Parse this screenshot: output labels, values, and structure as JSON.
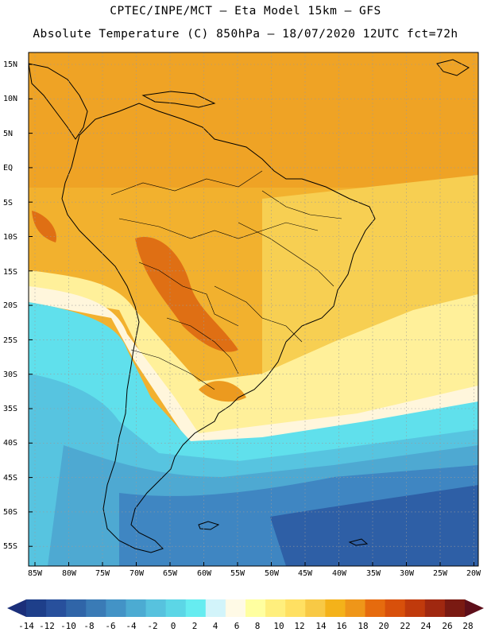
{
  "header": {
    "line1": "CPTEC/INPE/MCT –  Eta Model 15km – GFS",
    "line2": "Absolute Temperature (C) 850hPa – 18/07/2020 12UTC fct=72h"
  },
  "axes": {
    "lat_labels": [
      "15N",
      "10N",
      "5N",
      "EQ",
      "5S",
      "10S",
      "15S",
      "20S",
      "25S",
      "30S",
      "35S",
      "40S",
      "45S",
      "50S",
      "55S"
    ],
    "lon_labels": [
      "85W",
      "80W",
      "75W",
      "70W",
      "65W",
      "60W",
      "55W",
      "50W",
      "45W",
      "40W",
      "35W",
      "30W",
      "25W",
      "20W"
    ]
  },
  "colorbar": {
    "labels": [
      "-14",
      "-12",
      "-10",
      "-8",
      "-6",
      "-4",
      "-2",
      "0",
      "2",
      "4",
      "6",
      "8",
      "10",
      "12",
      "14",
      "16",
      "18",
      "20",
      "22",
      "24",
      "26",
      "28"
    ],
    "colors": [
      "#1e3f8a",
      "#28509c",
      "#3065a8",
      "#3a7bb6",
      "#4393c6",
      "#4cabd2",
      "#57c2de",
      "#5cd6e6",
      "#66ecf0",
      "#d2f4fa",
      "#fffae6",
      "#ffffa0",
      "#ffef7d",
      "#ffe062",
      "#f8c945",
      "#f4b21a",
      "#ef9619",
      "#e66b0e",
      "#d8500b",
      "#c03a0c",
      "#a02810",
      "#7a1a12"
    ]
  },
  "map_colors": {
    "ocean": "#3f86c2",
    "deep": "#2e5fa6",
    "cold": "#4ea9d2",
    "cool": "#57c4e0",
    "cyan": "#60e0ec",
    "pale": "#d2f4fa",
    "cream": "#fff6dc",
    "yellow": "#fff09a",
    "light_orange": "#f7cf52",
    "orange": "#f2b12e",
    "warm": "#ec9a1f",
    "hot": "#df6f14",
    "coast": "#000000"
  }
}
